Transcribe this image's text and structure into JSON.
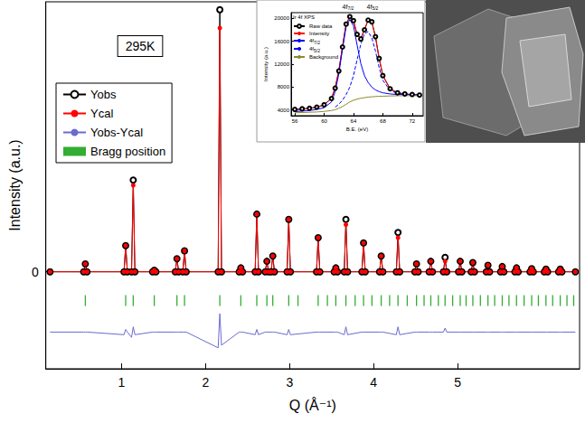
{
  "chart_data": [
    {
      "type": "line",
      "x_label": "Q (Å⁻¹)",
      "y_label": "Intensity (a.u.)",
      "xlim": [
        0.1,
        6.45
      ],
      "xticks": [
        1,
        2,
        3,
        4,
        5
      ],
      "ylim": [
        -37,
        103
      ],
      "yticks": [
        0
      ],
      "grid": false,
      "legend": "upper left",
      "annotations": [
        {
          "text": "295K"
        }
      ],
      "x": [
        0.15,
        0.55,
        0.57,
        0.59,
        1.03,
        1.05,
        1.07,
        1.12,
        1.14,
        1.16,
        1.37,
        1.39,
        1.41,
        1.64,
        1.66,
        1.68,
        1.73,
        1.75,
        1.77,
        2.15,
        2.17,
        2.19,
        2.4,
        2.42,
        2.44,
        2.59,
        2.61,
        2.63,
        2.71,
        2.73,
        2.75,
        2.78,
        2.8,
        2.82,
        2.97,
        2.99,
        3.01,
        3.32,
        3.34,
        3.36,
        3.53,
        3.55,
        3.57,
        3.65,
        3.67,
        3.69,
        3.86,
        3.88,
        3.9,
        4.07,
        4.09,
        4.11,
        4.27,
        4.29,
        4.31,
        4.49,
        4.51,
        4.53,
        4.66,
        4.68,
        4.7,
        4.83,
        4.85,
        4.87,
        5.01,
        5.03,
        5.05,
        5.16,
        5.18,
        5.2,
        5.34,
        5.36,
        5.38,
        5.51,
        5.53,
        5.55,
        5.68,
        5.7,
        5.72,
        5.86,
        5.88,
        5.9,
        6.03,
        6.05,
        6.07,
        6.2,
        6.22,
        6.24,
        6.4
      ],
      "series": [
        {
          "name": "Yobs",
          "color": "#000000",
          "marker": "open circle",
          "line_style": "solid",
          "values": [
            0,
            0,
            3,
            0,
            0,
            10,
            0,
            0,
            35,
            0,
            0,
            0.6,
            0,
            0,
            5,
            0,
            0,
            8,
            0,
            0,
            100,
            0,
            0,
            1.5,
            0,
            0,
            22,
            0,
            0,
            4,
            0,
            0,
            6,
            0,
            0,
            20,
            0,
            0,
            13,
            0,
            0,
            1.5,
            0,
            0,
            20,
            0,
            0,
            11,
            0,
            0,
            6,
            0,
            0,
            15,
            0,
            0,
            3,
            0,
            0,
            4,
            0,
            0,
            5.5,
            0,
            0,
            4,
            0,
            0,
            3.5,
            0,
            0,
            2.5,
            0,
            0,
            2,
            0,
            0,
            1.5,
            0,
            0,
            1.2,
            0,
            0,
            1,
            0,
            0,
            1,
            0,
            0
          ]
        },
        {
          "name": "Ycal",
          "color": "#ff0000",
          "marker": "filled circle",
          "line_style": "solid",
          "values": [
            0,
            0,
            3,
            0,
            0,
            10,
            0,
            0,
            33,
            0,
            0,
            0.6,
            0,
            0,
            5,
            0,
            0,
            8,
            0,
            0,
            93,
            0,
            0,
            1.5,
            0,
            0,
            22,
            0,
            0,
            4,
            0,
            0,
            6,
            0,
            0,
            20,
            0,
            0,
            13,
            0,
            0,
            1.5,
            0,
            0,
            18,
            0,
            0,
            11,
            0,
            0,
            6,
            0,
            0,
            13,
            0,
            0,
            3,
            0,
            0,
            4,
            0,
            0,
            4,
            0,
            0,
            4,
            0,
            0,
            3.5,
            0,
            0,
            2.5,
            0,
            0,
            2,
            0,
            0,
            1.5,
            0,
            0,
            1.2,
            0,
            0,
            1,
            0,
            0,
            1,
            0,
            0
          ]
        },
        {
          "name": "Yobs-Ycal",
          "color": "#6a6ad0",
          "marker": "none",
          "line_style": "solid",
          "values": [
            -23,
            -23,
            -23,
            -23,
            -24,
            -22,
            -23,
            -25,
            -21,
            -24,
            -23,
            -23,
            -23,
            -23,
            -23,
            -23,
            -23,
            -23,
            -23,
            -29,
            -16,
            -28,
            -23,
            -23,
            -23,
            -24,
            -22,
            -24,
            -23,
            -23,
            -23,
            -23,
            -23,
            -23,
            -24,
            -22,
            -24,
            -23,
            -23,
            -23,
            -23,
            -23,
            -23,
            -24,
            -21,
            -24,
            -23,
            -23,
            -23,
            -23,
            -23,
            -23,
            -24,
            -21,
            -24,
            -23,
            -23,
            -23,
            -23,
            -23,
            -23,
            -23,
            -21.5,
            -23,
            -23,
            -23,
            -23,
            -23,
            -23,
            -23,
            -23,
            -23,
            -23,
            -23,
            -23,
            -23,
            -23,
            -23,
            -23,
            -23,
            -23,
            -23,
            -23,
            -23,
            -23,
            -23,
            -23,
            -23,
            -23
          ]
        },
        {
          "name": "Bragg position",
          "color": "#009900",
          "type": "scatter",
          "marker": "vline",
          "x": [
            0.57,
            1.05,
            1.14,
            1.39,
            1.66,
            1.75,
            2.17,
            2.42,
            2.61,
            2.73,
            2.8,
            2.99,
            3.1,
            3.34,
            3.45,
            3.55,
            3.67,
            3.78,
            3.88,
            3.98,
            4.09,
            4.19,
            4.29,
            4.4,
            4.51,
            4.6,
            4.68,
            4.77,
            4.85,
            4.94,
            5.03,
            5.1,
            5.18,
            5.27,
            5.36,
            5.44,
            5.53,
            5.61,
            5.7,
            5.79,
            5.88,
            5.96,
            6.05,
            6.13,
            6.22,
            6.3,
            6.38
          ],
          "values": [
            -11,
            -11,
            -11,
            -11,
            -11,
            -11,
            -11,
            -11,
            -11,
            -11,
            -11,
            -11,
            -11,
            -11,
            -11,
            -11,
            -11,
            -11,
            -11,
            -11,
            -11,
            -11,
            -11,
            -11,
            -11,
            -11,
            -11,
            -11,
            -11,
            -11,
            -11,
            -11,
            -11,
            -11,
            -11,
            -11,
            -11,
            -11,
            -11,
            -11,
            -11,
            -11,
            -11,
            -11,
            -11,
            -11,
            -11
          ]
        }
      ]
    },
    {
      "type": "line",
      "title": "Ir 4f XPS",
      "x_label": "B.E. (eV)",
      "y_label": "Intensity (a.u.)",
      "xlim": [
        55.5,
        73.5
      ],
      "xticks": [
        56,
        60,
        64,
        68,
        72
      ],
      "ylim": [
        3000,
        21000
      ],
      "yticks": [
        4000,
        8000,
        12000,
        16000,
        20000
      ],
      "grid": false,
      "legend": "upper left",
      "annotations": [
        {
          "text": "4f7/2"
        },
        {
          "text": "4f5/2"
        }
      ],
      "x": [
        56,
        57,
        58,
        59,
        60,
        61,
        61.5,
        62,
        62.5,
        63,
        63.5,
        64,
        64.5,
        65,
        65.5,
        66,
        66.5,
        67,
        67.5,
        68,
        69,
        70,
        71,
        72,
        73
      ],
      "series": [
        {
          "name": "Raw data",
          "color": "#000000",
          "marker": "open circle",
          "line_style": "solid",
          "values": [
            4100,
            4200,
            4300,
            4500,
            4900,
            6000,
            7800,
            10800,
            15000,
            19000,
            20300,
            19600,
            17200,
            16400,
            18000,
            19700,
            19400,
            16800,
            13000,
            10000,
            7700,
            7000,
            6800,
            6700,
            6600
          ]
        },
        {
          "name": "Intensity",
          "color": "#ff0000",
          "marker": "none",
          "line_style": "solid",
          "values": [
            3900,
            4100,
            4250,
            4500,
            4900,
            6100,
            7900,
            10900,
            15100,
            19100,
            20200,
            19500,
            17100,
            16500,
            18100,
            19700,
            19300,
            16700,
            13000,
            10100,
            7600,
            7000,
            6800,
            6650,
            6600
          ]
        },
        {
          "name": "4f7/2",
          "color": "#0000ff",
          "marker": "none",
          "line_style": "solid",
          "values": [
            3700,
            3800,
            3900,
            4100,
            4400,
            5400,
            7200,
            10300,
            14600,
            18600,
            19800,
            18700,
            15300,
            12100,
            10000,
            8800,
            8000,
            7500,
            7200,
            7000,
            6800,
            6700,
            6700,
            6650,
            6600
          ]
        },
        {
          "name": "4f5/2",
          "color": "#0000ff",
          "marker": "none",
          "line_style": "dashed",
          "values": [
            null,
            null,
            null,
            null,
            null,
            null,
            4500,
            5000,
            5700,
            6700,
            8000,
            10000,
            12800,
            15500,
            17300,
            17700,
            16600,
            14300,
            11400,
            9200,
            7400,
            6900,
            6750,
            6650,
            6600
          ]
        },
        {
          "name": "Background",
          "color": "#8b8b2e",
          "marker": "none",
          "line_style": "solid",
          "values": [
            3500,
            3550,
            3600,
            3650,
            3750,
            3900,
            4050,
            4300,
            4600,
            5000,
            5400,
            5700,
            5900,
            6050,
            6150,
            6250,
            6300,
            6350,
            6380,
            6400,
            6450,
            6480,
            6500,
            6500,
            6500
          ]
        }
      ]
    }
  ]
}
